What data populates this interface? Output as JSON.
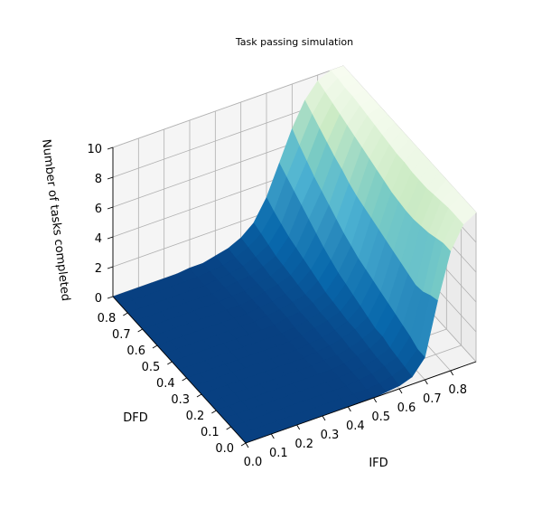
{
  "chart_data": {
    "type": "surface3d",
    "title": "Task passing simulation",
    "xlabel": "IFD",
    "ylabel": "DFD",
    "zlabel": "Number of tasks completed",
    "x_ticks": [
      "0.0",
      "0.1",
      "0.2",
      "0.3",
      "0.4",
      "0.5",
      "0.6",
      "0.7",
      "0.8"
    ],
    "y_ticks": [
      "0.0",
      "0.1",
      "0.2",
      "0.3",
      "0.4",
      "0.5",
      "0.6",
      "0.7",
      "0.8"
    ],
    "z_ticks": [
      "0",
      "2",
      "4",
      "6",
      "8",
      "10"
    ],
    "xlim": [
      0,
      0.9
    ],
    "ylim": [
      0,
      0.9
    ],
    "zlim": [
      0,
      10
    ],
    "grid": true,
    "colormap": "GnBu",
    "colormap_stops": [
      "#f7fcf0",
      "#ccebc5",
      "#7bccc4",
      "#4eb3d3",
      "#2b8cbe",
      "#0868ac",
      "#084081"
    ],
    "x": [
      0.0,
      0.05,
      0.1,
      0.15,
      0.2,
      0.25,
      0.3,
      0.35,
      0.4,
      0.45,
      0.5,
      0.55,
      0.6,
      0.65,
      0.7,
      0.75,
      0.8,
      0.85,
      0.9
    ],
    "y": [
      0.0,
      0.05,
      0.1,
      0.15,
      0.2,
      0.25,
      0.3,
      0.35,
      0.4,
      0.45,
      0.5,
      0.55,
      0.6,
      0.65,
      0.7,
      0.75,
      0.8,
      0.85,
      0.9
    ],
    "z_note": "z rows indexed by DFD (y), columns by IFD (x)",
    "z": [
      [
        0.0,
        0.0,
        0.0,
        0.0,
        0.0,
        0.0,
        0.0,
        0.0,
        0.0,
        0.0,
        0.0,
        0.1,
        0.2,
        0.5,
        1.5,
        5.0,
        8.0,
        9.5,
        10.0
      ],
      [
        0.0,
        0.0,
        0.0,
        0.0,
        0.0,
        0.0,
        0.0,
        0.0,
        0.0,
        0.0,
        0.0,
        0.1,
        0.3,
        0.6,
        1.5,
        4.8,
        8.0,
        9.5,
        10.0
      ],
      [
        0.0,
        0.0,
        0.0,
        0.0,
        0.0,
        0.0,
        0.0,
        0.0,
        0.0,
        0.0,
        0.1,
        0.2,
        0.4,
        0.7,
        1.8,
        4.5,
        7.8,
        9.5,
        10.0
      ],
      [
        0.0,
        0.0,
        0.0,
        0.0,
        0.0,
        0.0,
        0.0,
        0.0,
        0.0,
        0.0,
        0.1,
        0.2,
        0.4,
        0.8,
        2.0,
        4.4,
        7.6,
        9.4,
        10.0
      ],
      [
        0.0,
        0.0,
        0.0,
        0.0,
        0.0,
        0.0,
        0.0,
        0.0,
        0.0,
        0.0,
        0.1,
        0.3,
        0.5,
        1.0,
        2.2,
        4.6,
        7.5,
        9.3,
        10.0
      ],
      [
        0.0,
        0.0,
        0.0,
        0.0,
        0.0,
        0.0,
        0.0,
        0.0,
        0.0,
        0.1,
        0.1,
        0.3,
        0.6,
        1.0,
        2.4,
        4.8,
        7.4,
        9.2,
        10.0
      ],
      [
        0.0,
        0.0,
        0.0,
        0.0,
        0.0,
        0.0,
        0.0,
        0.0,
        0.0,
        0.1,
        0.2,
        0.4,
        0.7,
        1.2,
        2.6,
        5.0,
        7.4,
        9.2,
        10.0
      ],
      [
        0.0,
        0.0,
        0.0,
        0.0,
        0.0,
        0.0,
        0.0,
        0.0,
        0.0,
        0.1,
        0.2,
        0.4,
        0.7,
        1.4,
        2.8,
        5.2,
        7.5,
        9.2,
        10.0
      ],
      [
        0.0,
        0.0,
        0.0,
        0.0,
        0.0,
        0.0,
        0.0,
        0.0,
        0.0,
        0.1,
        0.3,
        0.5,
        0.8,
        1.6,
        3.0,
        5.4,
        7.6,
        9.3,
        10.0
      ],
      [
        0.0,
        0.0,
        0.0,
        0.0,
        0.0,
        0.0,
        0.0,
        0.0,
        0.0,
        0.1,
        0.3,
        0.5,
        0.9,
        1.8,
        3.2,
        5.6,
        7.8,
        9.3,
        10.0
      ],
      [
        0.0,
        0.0,
        0.0,
        0.0,
        0.0,
        0.0,
        0.0,
        0.0,
        0.0,
        0.2,
        0.3,
        0.6,
        1.0,
        2.0,
        3.5,
        5.8,
        8.0,
        9.4,
        10.0
      ],
      [
        0.0,
        0.0,
        0.0,
        0.0,
        0.0,
        0.0,
        0.0,
        0.0,
        0.1,
        0.2,
        0.4,
        0.6,
        1.2,
        2.3,
        3.8,
        6.0,
        8.2,
        9.5,
        10.0
      ],
      [
        0.0,
        0.0,
        0.0,
        0.0,
        0.0,
        0.0,
        0.0,
        0.0,
        0.1,
        0.2,
        0.4,
        0.7,
        1.4,
        2.6,
        4.2,
        6.3,
        8.4,
        9.6,
        10.0
      ],
      [
        0.0,
        0.0,
        0.0,
        0.0,
        0.0,
        0.0,
        0.0,
        0.0,
        0.1,
        0.3,
        0.5,
        0.8,
        1.6,
        3.0,
        4.6,
        6.7,
        8.6,
        9.7,
        10.0
      ],
      [
        0.0,
        0.0,
        0.0,
        0.0,
        0.0,
        0.0,
        0.0,
        0.1,
        0.1,
        0.3,
        0.5,
        0.9,
        1.8,
        3.4,
        5.0,
        7.0,
        8.8,
        9.8,
        10.0
      ],
      [
        0.0,
        0.0,
        0.0,
        0.0,
        0.0,
        0.0,
        0.0,
        0.1,
        0.2,
        0.3,
        0.6,
        1.0,
        2.0,
        3.8,
        5.4,
        7.4,
        9.0,
        9.9,
        10.0
      ],
      [
        0.0,
        0.0,
        0.0,
        0.0,
        0.0,
        0.0,
        0.0,
        0.1,
        0.2,
        0.4,
        0.7,
        1.2,
        2.3,
        4.2,
        5.9,
        7.8,
        9.2,
        9.9,
        10.0
      ],
      [
        0.0,
        0.0,
        0.0,
        0.0,
        0.0,
        0.0,
        0.0,
        0.1,
        0.2,
        0.4,
        0.8,
        1.4,
        2.6,
        4.6,
        6.4,
        8.2,
        9.4,
        10.0,
        10.0
      ],
      [
        0.0,
        0.0,
        0.0,
        0.0,
        0.0,
        0.0,
        0.1,
        0.1,
        0.3,
        0.5,
        0.9,
        1.6,
        3.0,
        5.0,
        7.0,
        8.6,
        9.6,
        10.0,
        10.0
      ]
    ]
  }
}
